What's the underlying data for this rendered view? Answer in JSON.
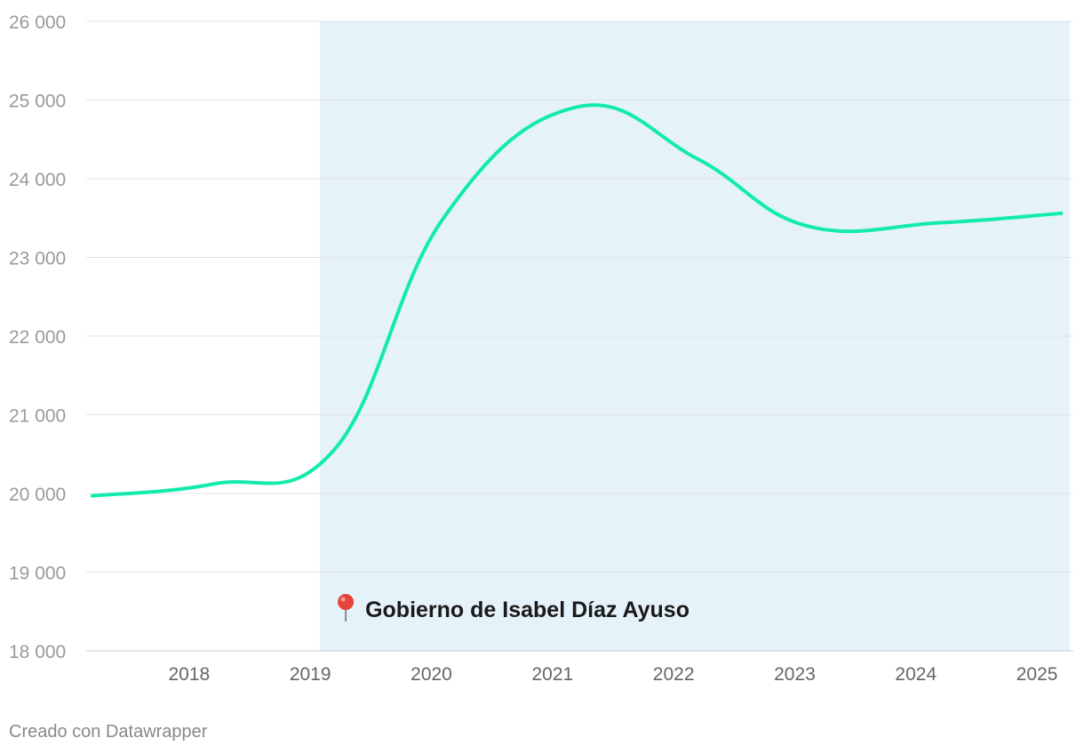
{
  "chart_data": {
    "type": "line",
    "title": "",
    "xlabel": "",
    "ylabel": "",
    "ylim": [
      18000,
      26000
    ],
    "xlim": [
      2017.15,
      2025.3
    ],
    "yticks": [
      18000,
      19000,
      20000,
      21000,
      22000,
      23000,
      24000,
      25000,
      26000
    ],
    "ytick_labels": [
      "18 000",
      "19 000",
      "20 000",
      "21 000",
      "22 000",
      "23 000",
      "24 000",
      "25 000",
      "26 000"
    ],
    "xticks": [
      2018,
      2019,
      2020,
      2021,
      2022,
      2023,
      2024,
      2025
    ],
    "xtick_labels": [
      "2018",
      "2019",
      "2020",
      "2021",
      "2022",
      "2023",
      "2024",
      "2025"
    ],
    "grid": "horizontal",
    "line_color": "#12ebaa",
    "series": [
      {
        "points": [
          {
            "x": 2017.2,
            "y": 19970
          },
          {
            "x": 2018.2,
            "y": 20120
          },
          {
            "x": 2019.2,
            "y": 20560
          },
          {
            "x": 2020.1,
            "y": 23500
          },
          {
            "x": 2021.2,
            "y": 24910
          },
          {
            "x": 2022.2,
            "y": 24250
          },
          {
            "x": 2023.1,
            "y": 23400
          },
          {
            "x": 2024.2,
            "y": 23440
          },
          {
            "x": 2025.2,
            "y": 23560
          }
        ]
      }
    ],
    "shaded_region": {
      "x_start": 2019.08,
      "x_end": 2025.3,
      "color": "#e5f2f9",
      "label": "Gobierno de Isabel Díaz Ayuso",
      "icon": "pushpin-icon"
    }
  },
  "footer": {
    "credit": "Creado con Datawrapper"
  }
}
